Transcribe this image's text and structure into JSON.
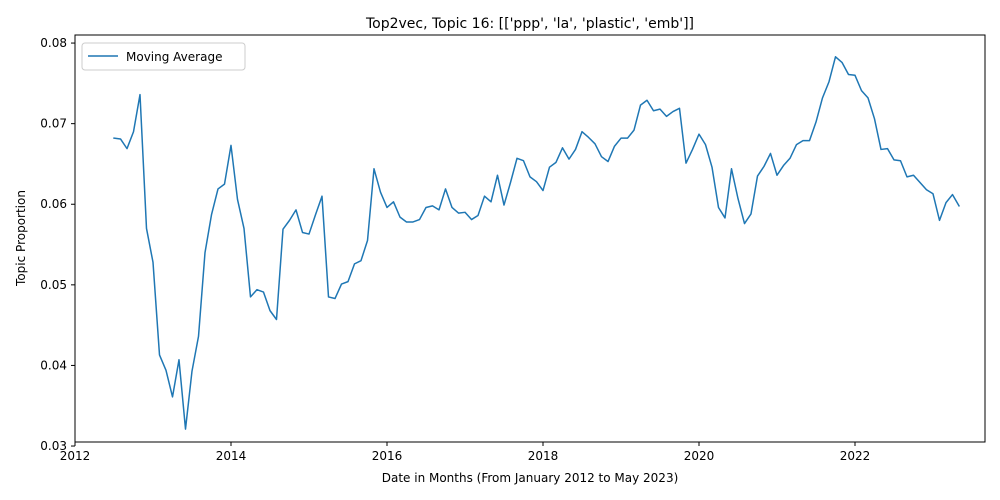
{
  "chart_data": {
    "type": "line",
    "title": "Top2vec, Topic 16: [['ppp', 'la', 'plastic', 'emb']]",
    "xlabel": "Date in Months (From January 2012 to May 2023)",
    "ylabel": "Topic Proportion",
    "xlim": [
      "2012-01",
      "2023-09"
    ],
    "ylim": [
      0.0305,
      0.081
    ],
    "x_ticks": [
      "2012",
      "2014",
      "2016",
      "2018",
      "2020",
      "2022"
    ],
    "y_ticks": [
      "0.03",
      "0.04",
      "0.05",
      "0.06",
      "0.07",
      "0.08"
    ],
    "legend_position": "top-left",
    "grid": false,
    "series": [
      {
        "name": "Moving Average",
        "color": "#1f77b4",
        "x": [
          "2012-07",
          "2012-08",
          "2012-09",
          "2012-10",
          "2012-11",
          "2012-12",
          "2013-01",
          "2013-02",
          "2013-03",
          "2013-04",
          "2013-05",
          "2013-06",
          "2013-07",
          "2013-08",
          "2013-09",
          "2013-10",
          "2013-11",
          "2013-12",
          "2014-01",
          "2014-02",
          "2014-03",
          "2014-04",
          "2014-05",
          "2014-06",
          "2014-07",
          "2014-08",
          "2014-09",
          "2014-10",
          "2014-11",
          "2014-12",
          "2015-01",
          "2015-02",
          "2015-03",
          "2015-04",
          "2015-05",
          "2015-06",
          "2015-07",
          "2015-08",
          "2015-09",
          "2015-10",
          "2015-11",
          "2015-12",
          "2016-01",
          "2016-02",
          "2016-03",
          "2016-04",
          "2016-05",
          "2016-06",
          "2016-07",
          "2016-08",
          "2016-09",
          "2016-10",
          "2016-11",
          "2016-12",
          "2017-01",
          "2017-02",
          "2017-03",
          "2017-04",
          "2017-05",
          "2017-06",
          "2017-07",
          "2017-08",
          "2017-09",
          "2017-10",
          "2017-11",
          "2017-12",
          "2018-01",
          "2018-02",
          "2018-03",
          "2018-04",
          "2018-05",
          "2018-06",
          "2018-07",
          "2018-08",
          "2018-09",
          "2018-10",
          "2018-11",
          "2018-12",
          "2019-01",
          "2019-02",
          "2019-03",
          "2019-04",
          "2019-05",
          "2019-06",
          "2019-07",
          "2019-08",
          "2019-09",
          "2019-10",
          "2019-11",
          "2019-12",
          "2020-01",
          "2020-02",
          "2020-03",
          "2020-04",
          "2020-05",
          "2020-06",
          "2020-07",
          "2020-08",
          "2020-09",
          "2020-10",
          "2020-11",
          "2020-12",
          "2021-01",
          "2021-02",
          "2021-03",
          "2021-04",
          "2021-05",
          "2021-06",
          "2021-07",
          "2021-08",
          "2021-09",
          "2021-10",
          "2021-11",
          "2021-12",
          "2022-01",
          "2022-02",
          "2022-03",
          "2022-04",
          "2022-05",
          "2022-06",
          "2022-07",
          "2022-08",
          "2022-09",
          "2022-10",
          "2022-11",
          "2022-12",
          "2023-01",
          "2023-02",
          "2023-03",
          "2023-04",
          "2023-05"
        ],
        "y": [
          0.0682,
          0.0681,
          0.0669,
          0.069,
          0.0736,
          0.057,
          0.0528,
          0.0413,
          0.0394,
          0.0361,
          0.0407,
          0.0321,
          0.0393,
          0.0436,
          0.054,
          0.0587,
          0.0619,
          0.0625,
          0.0673,
          0.0606,
          0.057,
          0.0485,
          0.0494,
          0.0491,
          0.0468,
          0.0457,
          0.0569,
          0.058,
          0.0593,
          0.0565,
          0.0563,
          0.0587,
          0.061,
          0.0485,
          0.0483,
          0.0501,
          0.0504,
          0.0526,
          0.053,
          0.0555,
          0.0644,
          0.0615,
          0.0596,
          0.0603,
          0.0584,
          0.0578,
          0.0578,
          0.0581,
          0.0596,
          0.0598,
          0.0593,
          0.0619,
          0.0596,
          0.0589,
          0.059,
          0.0581,
          0.0586,
          0.061,
          0.0603,
          0.0636,
          0.0599,
          0.0627,
          0.0657,
          0.0654,
          0.0634,
          0.0628,
          0.0617,
          0.0646,
          0.0652,
          0.067,
          0.0656,
          0.0668,
          0.069,
          0.0683,
          0.0675,
          0.0659,
          0.0653,
          0.0672,
          0.0682,
          0.0682,
          0.0692,
          0.0723,
          0.0729,
          0.0716,
          0.0718,
          0.0709,
          0.0715,
          0.0719,
          0.0651,
          0.0668,
          0.0687,
          0.0674,
          0.0646,
          0.0596,
          0.0583,
          0.0644,
          0.0607,
          0.0576,
          0.0588,
          0.0635,
          0.0647,
          0.0663,
          0.0636,
          0.0648,
          0.0657,
          0.0674,
          0.0679,
          0.0679,
          0.0702,
          0.0732,
          0.0752,
          0.0783,
          0.0776,
          0.0761,
          0.076,
          0.0741,
          0.0732,
          0.0706,
          0.0668,
          0.0669,
          0.0655,
          0.0654,
          0.0634,
          0.0636,
          0.0627,
          0.0618,
          0.0613,
          0.058,
          0.0602,
          0.0612,
          0.0598
        ]
      }
    ]
  }
}
